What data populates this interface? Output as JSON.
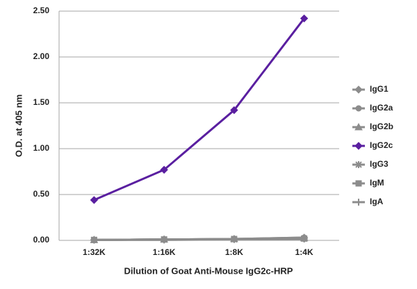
{
  "chart_data": {
    "type": "line",
    "x_label": "Dilution of Goat Anti-Mouse IgG2c-HRP",
    "y_label": "O.D. at 405 nm",
    "categories": [
      "1:32K",
      "1:16K",
      "1:8K",
      "1:4K"
    ],
    "ylim": [
      0,
      2.5
    ],
    "yticks": [
      {
        "value": 0,
        "label": "0.00"
      },
      {
        "value": 0.5,
        "label": "0.50"
      },
      {
        "value": 1,
        "label": "1.00"
      },
      {
        "value": 1.5,
        "label": "1.50"
      },
      {
        "value": 2,
        "label": "2.00"
      },
      {
        "value": 2.5,
        "label": "2.50"
      }
    ],
    "grid": true,
    "legend": "right",
    "series": [
      {
        "name": "IgG1",
        "color": "#8c8c8c",
        "marker": "diamond",
        "values": [
          0.005,
          0.01,
          0.015,
          0.03
        ]
      },
      {
        "name": "IgG2a",
        "color": "#8c8c8c",
        "marker": "circle",
        "values": [
          0.005,
          0.01,
          0.015,
          0.03
        ]
      },
      {
        "name": "IgG2b",
        "color": "#8c8c8c",
        "marker": "triangle",
        "values": [
          0.005,
          0.01,
          0.015,
          0.025
        ]
      },
      {
        "name": "IgG2c",
        "color": "#5a1fa0",
        "marker": "diamond",
        "values": [
          0.44,
          0.77,
          1.42,
          2.42
        ]
      },
      {
        "name": "IgG3",
        "color": "#8c8c8c",
        "marker": "star",
        "values": [
          0.005,
          0.01,
          0.01,
          0.02
        ]
      },
      {
        "name": "IgM",
        "color": "#8c8c8c",
        "marker": "square",
        "values": [
          0.005,
          0.01,
          0.015,
          0.02
        ]
      },
      {
        "name": "IgA",
        "color": "#8c8c8c",
        "marker": "plus",
        "values": [
          0.005,
          0.005,
          0.01,
          0.015
        ]
      }
    ]
  }
}
